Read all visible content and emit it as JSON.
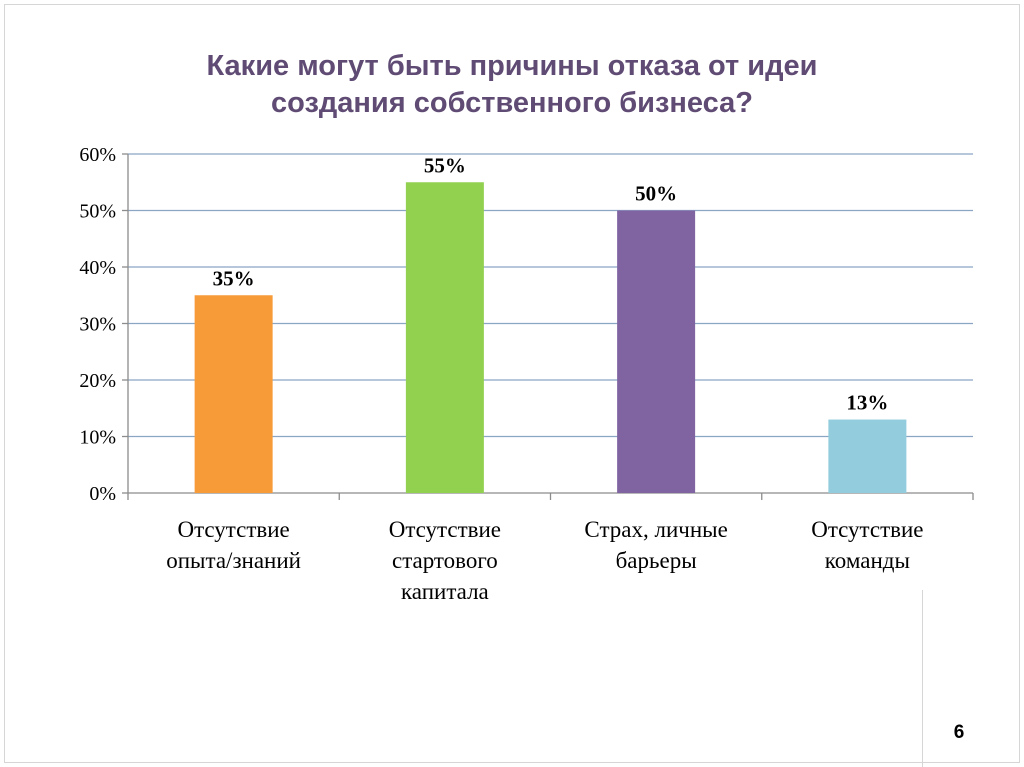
{
  "title_lines": [
    "Какие могут быть причины отказа от идеи",
    "создания собственного бизнеса?"
  ],
  "page_number": "6",
  "colors": {
    "title": "#5f4b73",
    "grid": "#8ba5c5",
    "axis": "#8c8c8c"
  },
  "chart_data": {
    "type": "bar",
    "title": "Какие могут быть причины отказа от идеи создания собственного бизнеса?",
    "categories": [
      [
        "Отсутствие",
        "опыта/знаний"
      ],
      [
        "Отсутствие",
        "стартового",
        "капитала"
      ],
      [
        "Страх, личные",
        "барьеры"
      ],
      [
        "Отсутствие",
        "команды"
      ]
    ],
    "values": [
      35,
      55,
      50,
      13
    ],
    "value_labels": [
      "35%",
      "55%",
      "50%",
      "13%"
    ],
    "bar_colors": [
      "#f79a38",
      "#92d050",
      "#8064a2",
      "#93cddd"
    ],
    "ylim": [
      0,
      60
    ],
    "yticks": [
      0,
      10,
      20,
      30,
      40,
      50,
      60
    ],
    "ytick_labels": [
      "0%",
      "10%",
      "20%",
      "30%",
      "40%",
      "50%",
      "60%"
    ],
    "grid": true,
    "legend": "none"
  }
}
